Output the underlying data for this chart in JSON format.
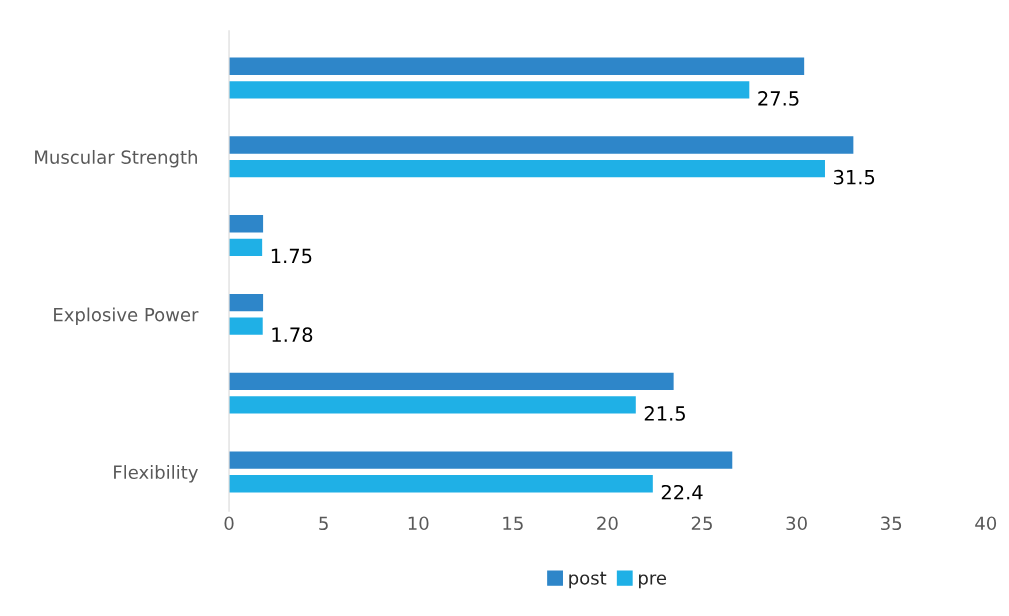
{
  "chart_data": {
    "type": "bar",
    "orientation": "horizontal",
    "categories": [
      null,
      "Muscular Strength",
      null,
      "Explosive Power",
      null,
      "Flexibility"
    ],
    "series": [
      {
        "name": "post",
        "color": "#2e86c9",
        "values": [
          30.4,
          33.0,
          1.8,
          1.8,
          23.5,
          26.6
        ]
      },
      {
        "name": "pre",
        "color": "#1fb0e6",
        "values": [
          27.5,
          31.5,
          1.75,
          1.78,
          21.5,
          22.4
        ],
        "value_labels": [
          "27.5",
          "31.5",
          "1.75",
          "1.78",
          "21.5",
          "22.4"
        ]
      }
    ],
    "xlim": [
      0,
      40
    ],
    "xticks": [
      0,
      5,
      10,
      15,
      20,
      25,
      30,
      35,
      40
    ],
    "grid": false,
    "legend": "bottom"
  }
}
